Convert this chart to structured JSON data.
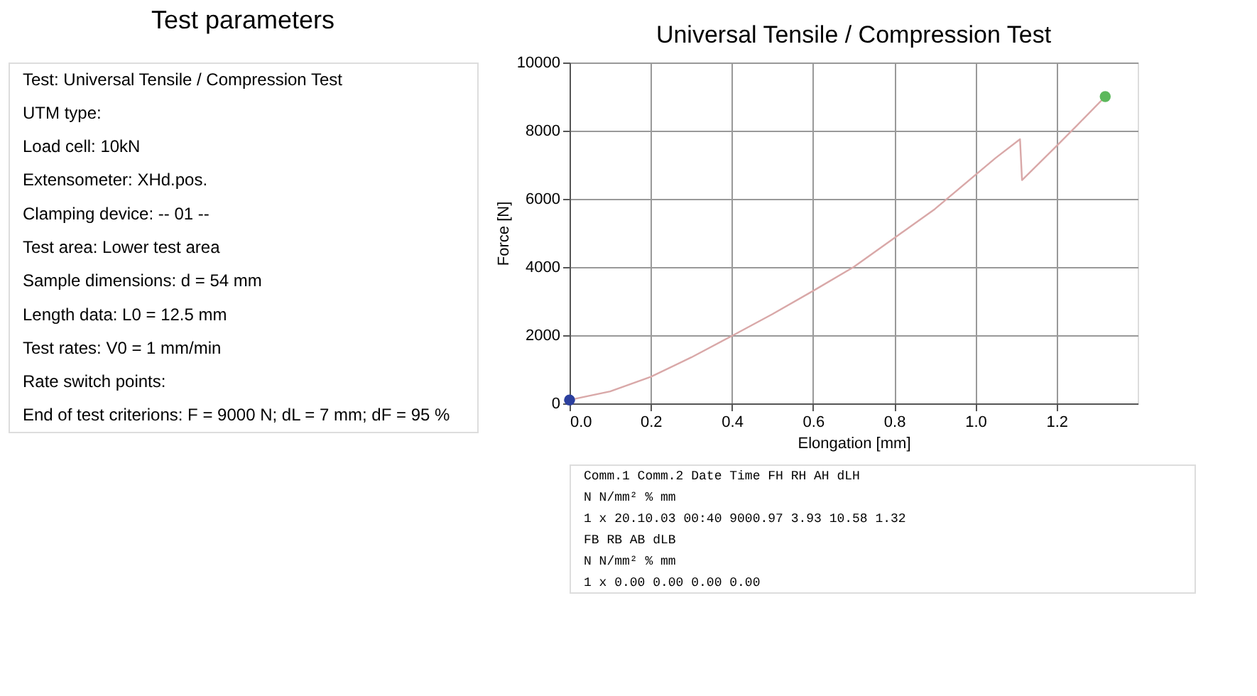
{
  "chart_data": [
    {
      "type": "other",
      "title": "Test parameters",
      "annotations": [
        "Test:  Universal Tensile / Compression Test",
        "UTM type:",
        "Load cell:  10kN",
        "Extensometer:  XHd.pos.",
        "Clamping device:  -- 01 --",
        "Test area:  Lower test area",
        "Sample dimensions:  d = 54 mm",
        "Length data:  L0 = 12.5 mm",
        "Test rates:  V0 = 1 mm/min",
        "Rate switch points:",
        "End of test criterions:  F = 9000 N; dL = 7 mm; dF = 95 %"
      ]
    },
    {
      "type": "line",
      "title": "Universal Tensile / Compression Test",
      "xlabel": "Elongation [mm]",
      "ylabel": "Force [N]",
      "xlim": [
        0,
        1.4
      ],
      "ylim": [
        0,
        10000
      ],
      "xticks": [
        {
          "value": 0,
          "label": "0.0"
        },
        {
          "value": 0.2,
          "label": "0.2"
        },
        {
          "value": 0.4,
          "label": "0.4"
        },
        {
          "value": 0.6,
          "label": "0.6"
        },
        {
          "value": 0.8,
          "label": "0.8"
        },
        {
          "value": 1,
          "label": "1.0"
        },
        {
          "value": 1.2,
          "label": "1.2"
        }
      ],
      "yticks": [
        0,
        2000,
        4000,
        6000,
        8000,
        10000
      ],
      "grid": true,
      "series": [
        {
          "type": "line",
          "color": "#d9a8a8",
          "x": [
            0,
            0.1,
            0.2,
            0.3,
            0.4,
            0.5,
            0.6,
            0.7,
            0.8,
            0.9,
            1.0,
            1.05,
            1.11,
            1.115,
            1.2,
            1.25,
            1.32
          ],
          "values": [
            100,
            350,
            780,
            1350,
            1980,
            2620,
            3300,
            4000,
            4850,
            5700,
            6700,
            7200,
            7750,
            6550,
            7550,
            8150,
            9000
          ]
        },
        {
          "type": "scatter",
          "marker": "circle",
          "color": "#2b3f9e",
          "x": [
            0
          ],
          "values": [
            100
          ]
        },
        {
          "type": "scatter",
          "marker": "circle",
          "color": "#5cb85c",
          "x": [
            1.32
          ],
          "values": [
            9000
          ]
        }
      ],
      "annotations": [
        "Comm.1   Comm.2   Date   Time   FH   RH   AH   dLH",
        "N   N/mm²   %   mm",
        "1   x   20.10.03   00:40   9000.97   3.93   10.58   1.32",
        "FB   RB   AB   dLB",
        "N   N/mm²   %   mm",
        "1   x   0.00   0.00   0.00   0.00"
      ]
    }
  ]
}
